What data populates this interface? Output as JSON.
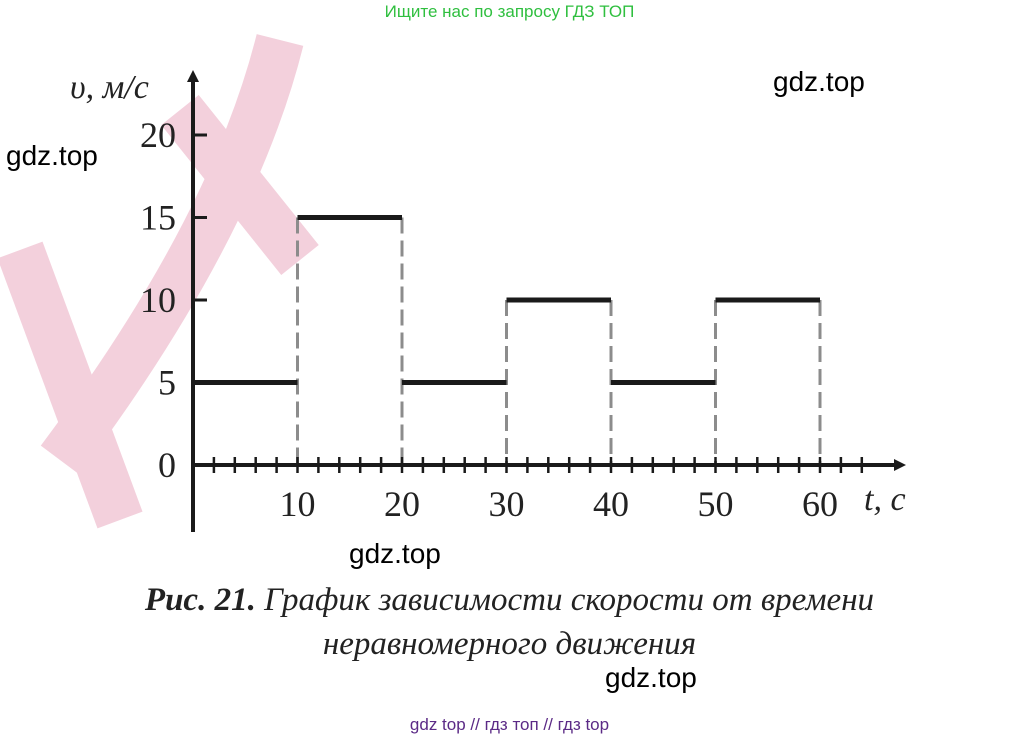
{
  "header": {
    "note": "Ищите нас по запросу ГДЗ ТОП"
  },
  "watermarks": [
    "gdz.top",
    "gdz.top",
    "gdz.top",
    "gdz.top"
  ],
  "caption": {
    "number": "Рис. 21.",
    "line1": "График зависимости скорости от времени",
    "line2": "неравномерного движения"
  },
  "footer": {
    "note": "gdz top  //  гдз топ  //  гдз top"
  },
  "colors": {
    "axis": "#1a1a1a",
    "segment": "#1a1a1a",
    "dashed": "#8c8c8c",
    "background_mark": "#f3d0dc",
    "top_note": "#2fbf3f",
    "bottom_note": "#5b2a86"
  },
  "chart_data": {
    "type": "line",
    "title": "",
    "ylabel": "υ, м/с",
    "xlabel": "t, с",
    "xlim": [
      0,
      70
    ],
    "ylim": [
      0,
      24
    ],
    "x_ticks": [
      10,
      20,
      30,
      40,
      50,
      60
    ],
    "x_minor_step": 2,
    "y_ticks": [
      0,
      5,
      10,
      15,
      20
    ],
    "grid": false,
    "segments": [
      {
        "x": [
          0,
          10
        ],
        "y": 5
      },
      {
        "x": [
          10,
          20
        ],
        "y": 15
      },
      {
        "x": [
          20,
          30
        ],
        "y": 5
      },
      {
        "x": [
          30,
          40
        ],
        "y": 10
      },
      {
        "x": [
          40,
          50
        ],
        "y": 5
      },
      {
        "x": [
          50,
          60
        ],
        "y": 10
      }
    ],
    "dashed_verticals": [
      10,
      20,
      30,
      40,
      50,
      60
    ]
  }
}
